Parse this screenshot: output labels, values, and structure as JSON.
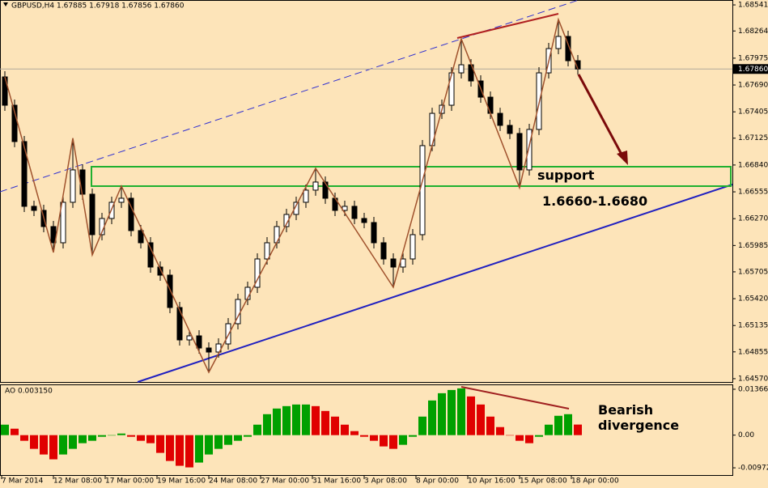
{
  "chart_data": [
    {
      "type": "candlestick",
      "title": "GBPUSD,H4 1.67885 1.67918 1.67856 1.67860",
      "x_labels": [
        "7 Mar 2014",
        "12 Mar 08:00",
        "17 Mar 00:00",
        "19 Mar 16:00",
        "24 Mar 08:00",
        "27 Mar 00:00",
        "31 Mar 16:00",
        "3 Apr 08:00",
        "8 Apr 00:00",
        "10 Apr 16:00",
        "15 Apr 08:00",
        "18 Apr 00:00"
      ],
      "open": [
        1.67776,
        1.67475,
        1.67089,
        1.66401,
        1.66358,
        1.66186,
        1.66014,
        1.66444,
        1.66788,
        1.6653,
        1.661,
        1.66272,
        1.66444,
        1.66487,
        1.66143,
        1.66014,
        1.65756,
        1.6567,
        1.65326,
        1.64982,
        1.65025,
        1.64896,
        1.64853,
        1.64939,
        1.65154,
        1.65412,
        1.65541,
        1.65842,
        1.66014,
        1.66186,
        1.66315,
        1.66444,
        1.66573,
        1.66659,
        1.66487,
        1.66358,
        1.66401,
        1.66272,
        1.66229,
        1.66014,
        1.65842,
        1.65756,
        1.65842,
        1.661,
        1.67046,
        1.67389,
        1.67475,
        1.67819,
        1.67905,
        1.67733,
        1.67561,
        1.67389,
        1.67261,
        1.67175,
        1.66788,
        1.67218,
        1.67819,
        1.68077,
        1.68206,
        1.67948
      ],
      "high": [
        1.67836,
        1.67535,
        1.67149,
        1.66461,
        1.66418,
        1.66246,
        1.66504,
        1.67125,
        1.66848,
        1.6659,
        1.66332,
        1.66504,
        1.66616,
        1.66547,
        1.66203,
        1.66074,
        1.65816,
        1.6573,
        1.65386,
        1.65085,
        1.65085,
        1.64956,
        1.64999,
        1.65214,
        1.65472,
        1.65601,
        1.65902,
        1.66074,
        1.66246,
        1.66375,
        1.66504,
        1.66633,
        1.66805,
        1.66719,
        1.66547,
        1.66461,
        1.66461,
        1.66332,
        1.66289,
        1.66074,
        1.65902,
        1.65902,
        1.6616,
        1.67106,
        1.67449,
        1.67535,
        1.67879,
        1.6818,
        1.67965,
        1.67793,
        1.67621,
        1.67449,
        1.67321,
        1.67235,
        1.67278,
        1.67879,
        1.68137,
        1.68386,
        1.68266,
        1.68008
      ],
      "low": [
        1.67415,
        1.67029,
        1.66341,
        1.66298,
        1.66126,
        1.65911,
        1.65954,
        1.66384,
        1.6647,
        1.65884,
        1.6604,
        1.66212,
        1.66384,
        1.66083,
        1.65954,
        1.65696,
        1.6561,
        1.65266,
        1.64922,
        1.64922,
        1.64836,
        1.64638,
        1.64793,
        1.64879,
        1.65094,
        1.65352,
        1.65481,
        1.65782,
        1.65954,
        1.66126,
        1.66255,
        1.66384,
        1.66513,
        1.66427,
        1.66298,
        1.66298,
        1.66212,
        1.66169,
        1.65954,
        1.65782,
        1.65541,
        1.65696,
        1.65782,
        1.6604,
        1.66986,
        1.67329,
        1.67415,
        1.67759,
        1.67673,
        1.67501,
        1.67329,
        1.67201,
        1.67115,
        1.66598,
        1.66728,
        1.67158,
        1.67759,
        1.68017,
        1.67888,
        1.678
      ],
      "close": [
        1.67475,
        1.67089,
        1.66401,
        1.66358,
        1.66186,
        1.66014,
        1.66444,
        1.66788,
        1.6653,
        1.661,
        1.66272,
        1.66444,
        1.66487,
        1.66143,
        1.66014,
        1.65756,
        1.6567,
        1.65326,
        1.64982,
        1.65025,
        1.64896,
        1.64853,
        1.64939,
        1.65154,
        1.65412,
        1.65541,
        1.65842,
        1.66014,
        1.66186,
        1.66315,
        1.66444,
        1.66573,
        1.66659,
        1.66487,
        1.66358,
        1.66401,
        1.66272,
        1.66229,
        1.66014,
        1.65842,
        1.65756,
        1.65842,
        1.661,
        1.67046,
        1.67389,
        1.67475,
        1.67819,
        1.67905,
        1.67733,
        1.67561,
        1.67389,
        1.67261,
        1.67175,
        1.66788,
        1.67218,
        1.67819,
        1.68077,
        1.68206,
        1.67948,
        1.6786
      ],
      "zigzag": {
        "color": "#a0522d",
        "x": [
          0,
          5,
          7,
          9,
          12,
          21,
          32,
          40,
          47,
          53,
          57,
          59
        ],
        "values": [
          1.67776,
          1.65911,
          1.67125,
          1.65884,
          1.66616,
          1.64638,
          1.66805,
          1.65541,
          1.6818,
          1.66598,
          1.68386,
          1.6786
        ]
      },
      "last_price": {
        "value": 1.6786,
        "label": "1.67860"
      },
      "annotations": [
        "support",
        "1.6660-1.6680"
      ],
      "ylim": [
        1.64535,
        1.68593
      ],
      "yticks": [
        1.68541,
        1.68264,
        1.67975,
        {
          "value": 1.6769,
          "label": "1.67690"
        },
        1.67405,
        1.67125,
        {
          "value": 1.6684,
          "label": "1.66840"
        },
        1.66555,
        {
          "value": 1.6627,
          "label": "1.66270"
        },
        1.65985,
        1.65705,
        {
          "value": 1.6542,
          "label": "1.65420"
        },
        1.65135,
        1.64855,
        {
          "value": 1.6457,
          "label": "1.64570"
        }
      ]
    },
    {
      "type": "histogram",
      "title": "AO 0.003150",
      "annotations": [
        "Bearish divergence"
      ],
      "up_color": "#00a000",
      "down_color": "#e00000",
      "values": [
        0.00312,
        0.00192,
        -0.00168,
        -0.00408,
        -0.00576,
        -0.0072,
        -0.00576,
        -0.00408,
        -0.0024,
        -0.00168,
        -0.00048,
        0,
        0.00048,
        -0.00048,
        -0.00168,
        -0.0024,
        -0.00528,
        -0.00768,
        -0.00912,
        -0.0096,
        -0.00816,
        -0.00576,
        -0.00408,
        -0.00288,
        -0.00168,
        -0.00048,
        0.00312,
        0.00624,
        0.00792,
        0.00864,
        0.00912,
        0.00912,
        0.00864,
        0.0072,
        0.00552,
        0.00312,
        0.0012,
        -0.00048,
        -0.00168,
        -0.00336,
        -0.00408,
        -0.00288,
        -0.00048,
        0.00552,
        0.01032,
        0.01248,
        0.01344,
        0.01392,
        0.01152,
        0.00912,
        0.00552,
        0.0024,
        0,
        -0.00168,
        -0.0024,
        -0.00048,
        0.00312,
        0.00576,
        0.00624,
        0.00315
      ],
      "ylim": [
        -0.01212,
        0.01486
      ],
      "yticks": [
        0.013664,
        {
          "value": 0,
          "label": "0.00"
        },
        -0.009727
      ]
    }
  ]
}
